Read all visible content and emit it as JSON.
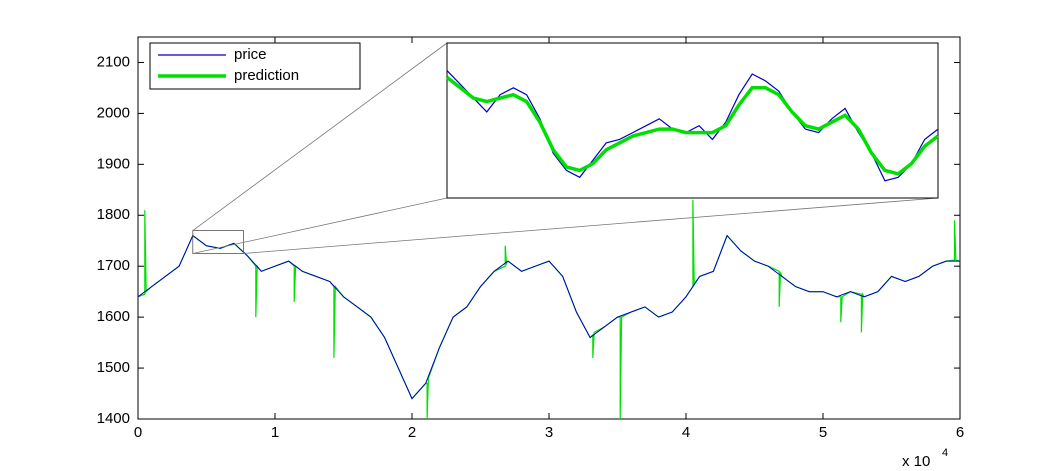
{
  "chart_data": {
    "type": "line",
    "xlim": [
      0,
      60000
    ],
    "ylim": [
      1400,
      2150
    ],
    "xticks": [
      {
        "value": 0,
        "label": "0"
      },
      {
        "value": 10000,
        "label": "1"
      },
      {
        "value": 20000,
        "label": "2"
      },
      {
        "value": 30000,
        "label": "3"
      },
      {
        "value": 40000,
        "label": "4"
      },
      {
        "value": 50000,
        "label": "5"
      },
      {
        "value": 60000,
        "label": "6"
      }
    ],
    "yticks": [
      1400,
      1500,
      1600,
      1700,
      1800,
      1900,
      2000,
      2100
    ],
    "x_exponent": "x 10",
    "x_exponent_power": "4",
    "legend": "upper-left",
    "series": [
      {
        "name": "price",
        "color": "#0000c8",
        "x": [
          0,
          1000,
          2000,
          3000,
          4000,
          5000,
          6000,
          7000,
          8000,
          9000,
          10000,
          11000,
          12000,
          13000,
          14000,
          15000,
          16000,
          17000,
          18000,
          19000,
          20000,
          21000,
          22000,
          23000,
          24000,
          25000,
          26000,
          27000,
          28000,
          29000,
          30000,
          31000,
          32000,
          33000,
          34000,
          35000,
          36000,
          37000,
          38000,
          39000,
          40000,
          41000,
          42000,
          43000,
          44000,
          45000,
          46000,
          47000,
          48000,
          49000,
          50000,
          51000,
          52000,
          53000,
          54000,
          55000,
          56000,
          57000,
          58000,
          59000,
          60000
        ],
        "values": [
          1640,
          1660,
          1680,
          1700,
          1760,
          1740,
          1735,
          1745,
          1720,
          1690,
          1700,
          1710,
          1690,
          1680,
          1670,
          1640,
          1620,
          1600,
          1560,
          1500,
          1440,
          1470,
          1540,
          1600,
          1620,
          1660,
          1690,
          1710,
          1690,
          1700,
          1710,
          1680,
          1610,
          1560,
          1580,
          1600,
          1610,
          1620,
          1600,
          1610,
          1640,
          1680,
          1690,
          1760,
          1730,
          1710,
          1700,
          1680,
          1660,
          1650,
          1650,
          1640,
          1650,
          1640,
          1650,
          1680,
          1670,
          1680,
          1700,
          1710,
          1710
        ]
      },
      {
        "name": "prediction",
        "color": "#00e000",
        "x": [
          0,
          500,
          500,
          600,
          1000,
          2000,
          3000,
          4000,
          5000,
          6000,
          7000,
          8000,
          8600,
          8600,
          8700,
          9000,
          10000,
          11000,
          11400,
          11400,
          11500,
          12000,
          13000,
          14000,
          14300,
          14300,
          14400,
          15000,
          16000,
          17000,
          18000,
          19000,
          20000,
          21000,
          21100,
          21100,
          21200,
          22000,
          23000,
          24000,
          25000,
          26000,
          26800,
          26800,
          26900,
          27000,
          28000,
          29000,
          30000,
          31000,
          32000,
          33000,
          33200,
          33200,
          33300,
          34000,
          35000,
          35200,
          35200,
          35300,
          36000,
          37000,
          38000,
          39000,
          40000,
          40500,
          40500,
          40600,
          41000,
          42000,
          43000,
          44000,
          45000,
          46000,
          46800,
          46800,
          46900,
          47000,
          48000,
          49000,
          50000,
          51000,
          51300,
          51300,
          51400,
          52000,
          52800,
          52800,
          52900,
          53000,
          54000,
          55000,
          56000,
          57000,
          58000,
          59000,
          59600,
          59600,
          59700,
          60000
        ],
        "values": [
          1640,
          1645,
          1810,
          1650,
          1660,
          1680,
          1700,
          1760,
          1740,
          1735,
          1745,
          1720,
          1700,
          1600,
          1700,
          1690,
          1700,
          1710,
          1700,
          1630,
          1700,
          1690,
          1680,
          1670,
          1660,
          1520,
          1660,
          1640,
          1620,
          1600,
          1560,
          1500,
          1440,
          1470,
          1470,
          1400,
          1480,
          1540,
          1600,
          1620,
          1660,
          1690,
          1700,
          1740,
          1705,
          1710,
          1690,
          1700,
          1710,
          1680,
          1610,
          1560,
          1565,
          1520,
          1570,
          1580,
          1600,
          1600,
          1400,
          1600,
          1610,
          1620,
          1600,
          1610,
          1640,
          1660,
          1830,
          1665,
          1680,
          1690,
          1760,
          1730,
          1710,
          1700,
          1690,
          1620,
          1688,
          1680,
          1660,
          1650,
          1650,
          1640,
          1640,
          1590,
          1640,
          1650,
          1645,
          1570,
          1645,
          1640,
          1650,
          1680,
          1670,
          1680,
          1700,
          1710,
          1712,
          1790,
          1712,
          1710
        ]
      }
    ],
    "inset": {
      "xlim": [
        4000,
        7700
      ],
      "ylim": [
        1725,
        1770
      ],
      "x": [
        4000,
        4100,
        4200,
        4300,
        4400,
        4500,
        4600,
        4700,
        4800,
        4900,
        5000,
        5100,
        5200,
        5300,
        5400,
        5500,
        5600,
        5700,
        5800,
        5900,
        6000,
        6100,
        6200,
        6300,
        6400,
        6500,
        6600,
        6700,
        6800,
        6900,
        7000,
        7100,
        7200,
        7300,
        7400,
        7500,
        7600,
        7700
      ],
      "price": [
        1762,
        1758,
        1754,
        1750,
        1755,
        1757,
        1755,
        1748,
        1738,
        1733,
        1731,
        1736,
        1741,
        1742,
        1744,
        1746,
        1748,
        1745,
        1744,
        1746,
        1742,
        1747,
        1755,
        1761,
        1759,
        1756,
        1750,
        1745,
        1744,
        1748,
        1751,
        1744,
        1738,
        1730,
        1731,
        1735,
        1742,
        1745
      ],
      "prediction": [
        1760,
        1757,
        1754,
        1753,
        1754,
        1755,
        1753,
        1747,
        1739,
        1734,
        1733,
        1735,
        1739,
        1741,
        1743,
        1744,
        1745,
        1745,
        1744,
        1744,
        1744,
        1746,
        1752,
        1757,
        1757,
        1755,
        1750,
        1746,
        1745,
        1747,
        1749,
        1745,
        1738,
        1733,
        1732,
        1735,
        1740,
        1743
      ]
    }
  }
}
